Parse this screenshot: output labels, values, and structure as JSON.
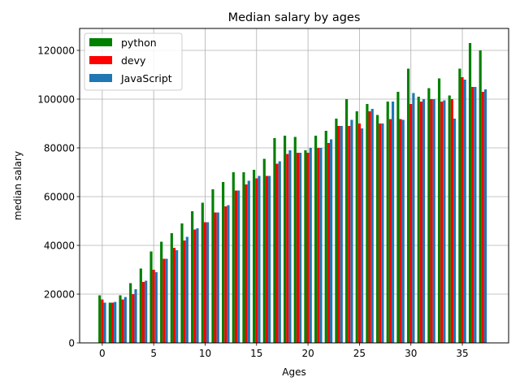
{
  "chart_data": {
    "type": "bar",
    "title": "Median salary by ages",
    "xlabel": "Ages",
    "ylabel": "median salary",
    "xlim": [
      -2.2,
      39.5
    ],
    "ylim": [
      0,
      129000
    ],
    "xticks": [
      0,
      5,
      10,
      15,
      20,
      25,
      30,
      35
    ],
    "yticks": [
      0,
      20000,
      40000,
      60000,
      80000,
      100000,
      120000
    ],
    "grid": true,
    "legend_position": "top-left",
    "x": [
      0,
      1,
      2,
      3,
      4,
      5,
      6,
      7,
      8,
      9,
      10,
      11,
      12,
      13,
      14,
      15,
      16,
      17,
      18,
      19,
      20,
      21,
      22,
      23,
      24,
      25,
      26,
      27,
      28,
      29,
      30,
      31,
      32,
      33,
      34,
      35,
      36,
      37
    ],
    "series": [
      {
        "name": "python",
        "color": "#008000",
        "values": [
          19500,
          16500,
          19500,
          24500,
          30500,
          37500,
          41500,
          45000,
          49000,
          54000,
          57500,
          63000,
          66000,
          70000,
          70000,
          71000,
          75500,
          84000,
          85000,
          84500,
          79000,
          85000,
          87000,
          92000,
          100000,
          95000,
          98000,
          93500,
          99000,
          103000,
          112500,
          101000,
          104500,
          108500,
          101500,
          112500,
          123000,
          120000
        ]
      },
      {
        "name": "devy",
        "color": "#ff0000",
        "values": [
          17800,
          16500,
          17800,
          20000,
          25000,
          30000,
          34500,
          39000,
          42000,
          46500,
          49500,
          53500,
          56000,
          62500,
          65000,
          67500,
          68500,
          73500,
          77500,
          78000,
          78000,
          80000,
          82000,
          89000,
          89000,
          90000,
          95000,
          90000,
          91800,
          91800,
          98000,
          99000,
          100000,
          99000,
          100000,
          109000,
          105000,
          103000
        ]
      },
      {
        "name": "JavaScript",
        "color": "#1f77b4",
        "values": [
          16500,
          16800,
          18800,
          22000,
          25500,
          29000,
          34500,
          38000,
          43500,
          47000,
          49500,
          53500,
          56500,
          62500,
          66500,
          68500,
          68500,
          74500,
          79000,
          78000,
          80000,
          80000,
          83500,
          89000,
          91500,
          88000,
          96000,
          90000,
          99000,
          91500,
          102500,
          100000,
          100000,
          99500,
          92000,
          108000,
          105000,
          104000
        ]
      }
    ]
  }
}
